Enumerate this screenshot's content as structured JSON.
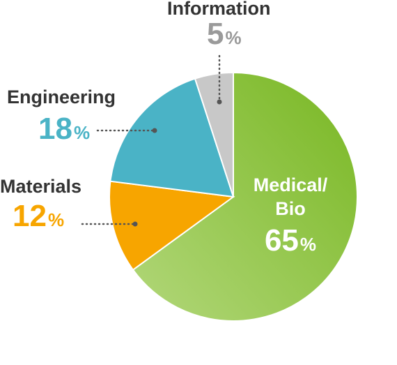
{
  "chart_data": {
    "type": "pie",
    "categories": [
      "Medical/\nBio",
      "Materials",
      "Engineering",
      "Information"
    ],
    "values": [
      65,
      12,
      18,
      5
    ],
    "unit": "%",
    "colors": [
      "#8cc63f",
      "#f7a500",
      "#4ab3c6",
      "#c8c8c8"
    ]
  },
  "labels": {
    "medical_line1": "Medical/",
    "medical_line2": "Bio",
    "medical_value": "65",
    "materials_name": "Materials",
    "materials_value": "12",
    "engineering_name": "Engineering",
    "engineering_value": "18",
    "information_name": "Information",
    "information_value": "5",
    "unit": "%"
  }
}
